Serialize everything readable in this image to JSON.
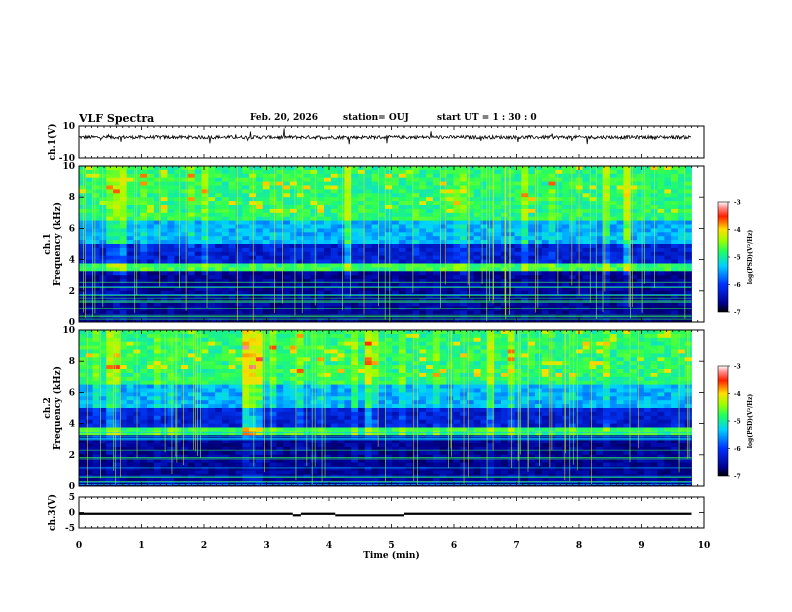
{
  "header": {
    "title": "VLF Spectra",
    "date": "Feb. 20, 2026",
    "station": "station= OUJ",
    "start": "start  UT =   1 : 30 : 0"
  },
  "chart_data": [
    {
      "type": "line",
      "panel": "ch1-waveform",
      "ylabel": "ch.1(V)",
      "ylim": [
        -10,
        10
      ],
      "yticks": [
        "10",
        "-10"
      ],
      "xlim": [
        0,
        10
      ],
      "trace_color": "#000000"
    },
    {
      "type": "heatmap",
      "panel": "ch1-spectrogram",
      "ylabel": "ch.1\nFrequency (kHz)",
      "ylim": [
        0,
        10
      ],
      "yticks": [
        "0",
        "2",
        "4",
        "6",
        "8",
        "10"
      ],
      "xlim": [
        0,
        10
      ],
      "data_end_min": 9.8,
      "colorbar": {
        "label": "log(PSD)(V²/Hz)",
        "range": [
          -7,
          -3
        ],
        "ticks": [
          "-3",
          "-4",
          "-5",
          "-6",
          "-7"
        ]
      }
    },
    {
      "type": "heatmap",
      "panel": "ch2-spectrogram",
      "ylabel": "ch.2\nFrequency (kHz)",
      "ylim": [
        0,
        10
      ],
      "yticks": [
        "0",
        "2",
        "4",
        "6",
        "8",
        "10"
      ],
      "xlim": [
        0,
        10
      ],
      "data_end_min": 9.8,
      "colorbar": {
        "label": "log(PSD)(V²/Hz)",
        "range": [
          -7,
          -3
        ],
        "ticks": [
          "-3",
          "-4",
          "-5",
          "-6",
          "-7"
        ]
      }
    },
    {
      "type": "line",
      "panel": "ch3-waveform",
      "ylabel": "ch.3(V)",
      "ylim": [
        -5,
        5
      ],
      "yticks": [
        "5",
        "0",
        "-5"
      ],
      "xlim": [
        0,
        10
      ],
      "xlabel": "Time (min)",
      "xticks": [
        "0",
        "1",
        "2",
        "3",
        "4",
        "5",
        "6",
        "7",
        "8",
        "9",
        "10"
      ],
      "segments": [
        [
          0,
          3.42,
          -0.4
        ],
        [
          3.42,
          3.55,
          -0.9
        ],
        [
          3.55,
          4.1,
          -0.4
        ],
        [
          4.1,
          5.2,
          -0.9
        ],
        [
          5.2,
          9.8,
          -0.4
        ]
      ]
    }
  ]
}
